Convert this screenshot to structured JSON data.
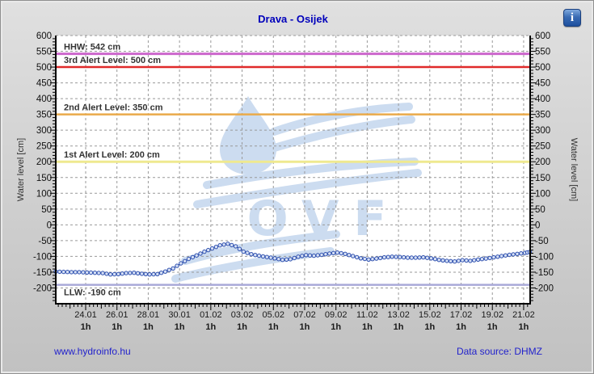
{
  "header": {
    "title": "Drava - Osijek",
    "info_glyph": "i"
  },
  "footer": {
    "site_link": "www.hydroinfo.hu",
    "data_source": "Data source: DHMZ"
  },
  "axes": {
    "y_label": "Water level [cm]",
    "y_ticks": [
      600,
      550,
      500,
      450,
      400,
      350,
      300,
      250,
      200,
      150,
      100,
      50,
      0,
      -50,
      -100,
      -150,
      -200
    ],
    "x_tick_labels": [
      "24.01",
      "26.01",
      "28.01",
      "30.01",
      "01.02",
      "03.02",
      "05.02",
      "07.02",
      "09.02",
      "11.02",
      "13.02",
      "15.02",
      "17.02",
      "19.02",
      "21.02"
    ],
    "x_sub_label": "1h"
  },
  "watermark": {
    "text": "OVF"
  },
  "colors": {
    "title": "#0000bb",
    "link": "#2222cc",
    "series_line": "#2d4fae",
    "marker_fill": "#d6e0f5",
    "watermark": "#ccdcf0",
    "grid": "#999999"
  },
  "chart_data": {
    "type": "line",
    "title": "Drava - Osijek",
    "ylabel": "Water level [cm]",
    "ylim": [
      -250,
      600
    ],
    "grid": true,
    "x_unit": "days (hourly stage readings, plot spans 22.01 - 21.02)",
    "x_tick_labels": [
      "24.01",
      "26.01",
      "28.01",
      "30.01",
      "01.02",
      "03.02",
      "05.02",
      "07.02",
      "09.02",
      "11.02",
      "13.02",
      "15.02",
      "17.02",
      "19.02",
      "21.02"
    ],
    "reference_lines": [
      {
        "label": "HHW: 542 cm",
        "value": 542,
        "color": "#cc66cc",
        "width": 3,
        "label_position": "above"
      },
      {
        "label": "3rd Alert Level: 500 cm",
        "value": 500,
        "color": "#e02a2a",
        "width": 2.5,
        "label_position": "above"
      },
      {
        "label": "2nd Alert Level: 350 cm",
        "value": 350,
        "color": "#eaaa4a",
        "width": 2.5,
        "label_position": "above"
      },
      {
        "label": "1st Alert Level: 200 cm",
        "value": 200,
        "color": "#efe98f",
        "width": 3,
        "label_position": "above"
      },
      {
        "label": "LLW: -190 cm",
        "value": -190,
        "color": "#a9a9d8",
        "width": 2.5,
        "label_position": "below"
      }
    ],
    "series": [
      {
        "name": "water level [cm]",
        "marker": "circle",
        "points": [
          [
            0,
            -148
          ],
          [
            0.5,
            -149
          ],
          [
            1,
            -150
          ],
          [
            1.5,
            -150
          ],
          [
            2,
            -151
          ],
          [
            2.5,
            -152
          ],
          [
            3,
            -153
          ],
          [
            3.5,
            -157
          ],
          [
            4,
            -156
          ],
          [
            4.5,
            -153
          ],
          [
            5,
            -152
          ],
          [
            5.5,
            -155
          ],
          [
            6,
            -157
          ],
          [
            6.5,
            -156
          ],
          [
            7,
            -148
          ],
          [
            7.5,
            -138
          ],
          [
            8,
            -122
          ],
          [
            8.5,
            -108
          ],
          [
            9,
            -97
          ],
          [
            9.5,
            -85
          ],
          [
            10,
            -75
          ],
          [
            10.5,
            -65
          ],
          [
            11,
            -60
          ],
          [
            11.5,
            -68
          ],
          [
            12,
            -85
          ],
          [
            12.5,
            -93
          ],
          [
            13,
            -98
          ],
          [
            13.5,
            -102
          ],
          [
            14,
            -106
          ],
          [
            14.5,
            -111
          ],
          [
            15,
            -109
          ],
          [
            15.5,
            -101
          ],
          [
            16,
            -96
          ],
          [
            16.5,
            -98
          ],
          [
            17,
            -95
          ],
          [
            17.5,
            -91
          ],
          [
            18,
            -88
          ],
          [
            18.5,
            -92
          ],
          [
            19,
            -99
          ],
          [
            19.5,
            -106
          ],
          [
            20,
            -110
          ],
          [
            20.5,
            -107
          ],
          [
            21,
            -103
          ],
          [
            21.5,
            -101
          ],
          [
            22,
            -102
          ],
          [
            22.5,
            -104
          ],
          [
            23,
            -104
          ],
          [
            23.5,
            -103
          ],
          [
            24,
            -106
          ],
          [
            24.5,
            -111
          ],
          [
            25,
            -114
          ],
          [
            25.5,
            -116
          ],
          [
            26,
            -112
          ],
          [
            26.5,
            -114
          ],
          [
            27,
            -110
          ],
          [
            27.5,
            -107
          ],
          [
            28,
            -103
          ],
          [
            28.5,
            -99
          ],
          [
            29,
            -95
          ],
          [
            29.5,
            -92
          ],
          [
            30,
            -89
          ],
          [
            30.3,
            -86
          ]
        ]
      }
    ]
  }
}
